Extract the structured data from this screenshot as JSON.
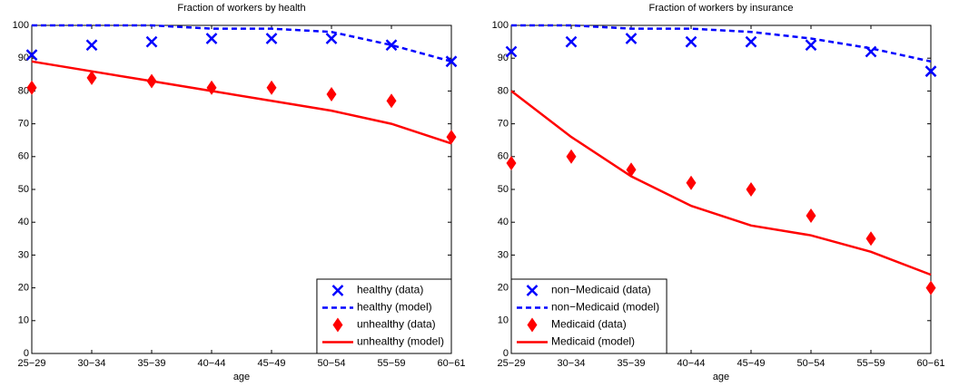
{
  "chart_data": [
    {
      "type": "line",
      "title": "Fraction of workers by health",
      "x_label": "age",
      "categories": [
        "25−29",
        "30−34",
        "35−39",
        "40−44",
        "45−49",
        "50−54",
        "55−59",
        "60−61"
      ],
      "ylim": [
        0,
        100
      ],
      "yticks": [
        0,
        10,
        20,
        30,
        40,
        50,
        60,
        70,
        80,
        90,
        100
      ],
      "legend": "lower right",
      "series": [
        {
          "name": "healthy (data)",
          "color": "#0000ff",
          "marker": "x",
          "values": [
            91,
            94,
            95,
            96,
            96,
            96,
            94,
            89
          ]
        },
        {
          "name": "healthy (model)",
          "color": "#0000ff",
          "line": "dashed",
          "values": [
            100,
            100,
            100,
            99,
            99,
            98,
            94,
            89
          ]
        },
        {
          "name": "unhealthy (data)",
          "color": "#ff0000",
          "marker": "diamond",
          "values": [
            81,
            84,
            83,
            81,
            81,
            79,
            77,
            66
          ]
        },
        {
          "name": "unhealthy (model)",
          "color": "#ff0000",
          "line": "solid",
          "values": [
            89,
            86,
            83,
            80,
            77,
            74,
            70,
            64
          ]
        }
      ]
    },
    {
      "type": "line",
      "title": "Fraction of workers by insurance",
      "x_label": "age",
      "categories": [
        "25−29",
        "30−34",
        "35−39",
        "40−44",
        "45−49",
        "50−54",
        "55−59",
        "60−61"
      ],
      "ylim": [
        0,
        100
      ],
      "yticks": [
        0,
        10,
        20,
        30,
        40,
        50,
        60,
        70,
        80,
        90,
        100
      ],
      "legend": "lower left",
      "series": [
        {
          "name": "non−Medicaid (data)",
          "color": "#0000ff",
          "marker": "x",
          "values": [
            92,
            95,
            96,
            95,
            95,
            94,
            92,
            86
          ]
        },
        {
          "name": "non−Medicaid (model)",
          "color": "#0000ff",
          "line": "dashed",
          "values": [
            100,
            100,
            99,
            99,
            98,
            96,
            93,
            89
          ]
        },
        {
          "name": "Medicaid (data)",
          "color": "#ff0000",
          "marker": "diamond",
          "values": [
            58,
            60,
            56,
            52,
            50,
            42,
            35,
            20
          ]
        },
        {
          "name": "Medicaid (model)",
          "color": "#ff0000",
          "line": "solid",
          "values": [
            80,
            66,
            54,
            45,
            39,
            36,
            31,
            24
          ]
        }
      ]
    }
  ]
}
